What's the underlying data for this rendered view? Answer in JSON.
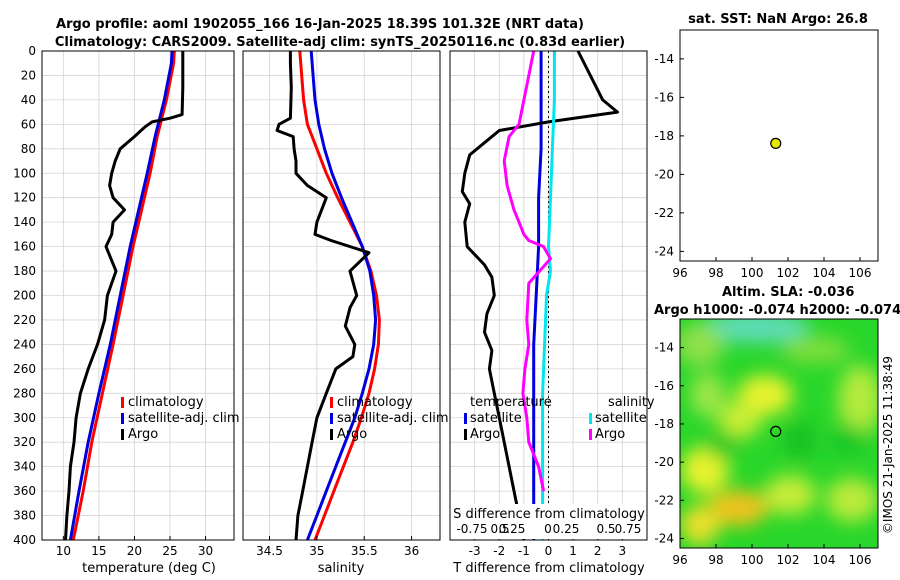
{
  "titles": {
    "line1": "Argo profile: aoml 1902055_166 16-Jan-2025 18.39S 101.32E (NRT data)",
    "line2": "Climatology: CARS2009. Satellite-adj clim: synTS_20250116.nc (0.83d earlier)",
    "sst_title": "sat. SST: NaN Argo: 26.8",
    "sla_title1": "Altim. SLA: -0.036",
    "sla_title2": "Argo h1000: -0.074 h2000: -0.074",
    "credit": "©IMOS 21-Jan-2025 11:38:49"
  },
  "colors": {
    "climatology": "#ff0000",
    "satellite": "#0000dd",
    "argo": "#000000",
    "sal_satellite": "#00e5ee",
    "sal_argo": "#ff00ff"
  },
  "chart_data": [
    {
      "type": "line",
      "name": "temperature",
      "xlabel": "temperature (deg C)",
      "ylabel": "",
      "xlim": [
        7,
        34
      ],
      "ylim": [
        400,
        0
      ],
      "xticks": [
        "10",
        "15",
        "20",
        "25",
        "30"
      ],
      "xtick_values": [
        10,
        15,
        20,
        25,
        30
      ],
      "yticks": [
        "0",
        "20",
        "40",
        "60",
        "80",
        "100",
        "120",
        "140",
        "160",
        "180",
        "200",
        "220",
        "240",
        "260",
        "280",
        "300",
        "320",
        "340",
        "360",
        "380",
        "400"
      ],
      "ytick_values": [
        0,
        20,
        40,
        60,
        80,
        100,
        120,
        140,
        160,
        180,
        200,
        220,
        240,
        260,
        280,
        300,
        320,
        340,
        360,
        380,
        400
      ],
      "legend": [
        "climatology",
        "satellite-adj. clim",
        "Argo"
      ],
      "series": [
        {
          "name": "climatology",
          "color": "#ff0000",
          "depth": [
            0,
            10,
            40,
            70,
            100,
            130,
            160,
            200,
            240,
            280,
            320,
            360,
            400
          ],
          "values": [
            25.6,
            25.5,
            24.5,
            23.2,
            22.2,
            21.0,
            19.8,
            18.4,
            17.0,
            15.5,
            14.0,
            12.8,
            11.4
          ]
        },
        {
          "name": "satellite-adj. clim",
          "color": "#0000dd",
          "depth": [
            0,
            10,
            40,
            70,
            100,
            130,
            160,
            200,
            240,
            280,
            320,
            360,
            400
          ],
          "values": [
            25.3,
            25.2,
            24.2,
            22.9,
            21.8,
            20.6,
            19.4,
            18.0,
            16.6,
            15.0,
            13.5,
            12.2,
            11.0
          ]
        },
        {
          "name": "Argo",
          "color": "#000000",
          "depth": [
            0,
            10,
            30,
            52,
            55,
            58,
            62,
            70,
            80,
            90,
            100,
            110,
            120,
            130,
            140,
            150,
            160,
            180,
            200,
            220,
            240,
            260,
            280,
            300,
            320,
            340,
            360,
            380,
            400
          ],
          "values": [
            26.8,
            26.8,
            26.8,
            26.7,
            25.0,
            22.5,
            21.5,
            20.0,
            18.0,
            17.3,
            16.8,
            16.5,
            17.0,
            18.6,
            17.0,
            16.8,
            16.0,
            17.4,
            16.2,
            15.8,
            14.8,
            13.5,
            12.4,
            11.8,
            11.5,
            11.0,
            10.8,
            10.5,
            10.3
          ]
        }
      ]
    },
    {
      "type": "line",
      "name": "salinity",
      "xlabel": "salinity",
      "ylabel": "",
      "xlim": [
        34.22,
        36.3
      ],
      "ylim": [
        400,
        0
      ],
      "xticks": [
        "34.5",
        "35",
        "35.5",
        "36"
      ],
      "xtick_values": [
        34.5,
        35,
        35.5,
        36
      ],
      "legend": [
        "climatology",
        "satellite-adj. clim",
        "Argo"
      ],
      "series": [
        {
          "name": "climatology",
          "color": "#ff0000",
          "depth": [
            0,
            20,
            40,
            60,
            80,
            100,
            120,
            140,
            160,
            180,
            200,
            220,
            240,
            260,
            280,
            300,
            320,
            340,
            360,
            380,
            400
          ],
          "values": [
            34.82,
            34.84,
            34.86,
            34.9,
            35.0,
            35.1,
            35.22,
            35.35,
            35.48,
            35.57,
            35.63,
            35.66,
            35.65,
            35.61,
            35.55,
            35.47,
            35.38,
            35.28,
            35.18,
            35.08,
            34.98
          ]
        },
        {
          "name": "satellite-adj. clim",
          "color": "#0000dd",
          "depth": [
            0,
            20,
            40,
            60,
            80,
            100,
            120,
            140,
            160,
            180,
            200,
            220,
            240,
            260,
            280,
            300,
            320,
            340,
            360,
            380,
            400
          ],
          "values": [
            34.94,
            34.96,
            34.98,
            35.02,
            35.08,
            35.16,
            35.26,
            35.37,
            35.48,
            35.56,
            35.6,
            35.62,
            35.6,
            35.55,
            35.48,
            35.4,
            35.3,
            35.2,
            35.1,
            35.0,
            34.9
          ]
        },
        {
          "name": "Argo",
          "color": "#000000",
          "depth": [
            0,
            10,
            30,
            55,
            60,
            65,
            70,
            80,
            90,
            100,
            110,
            115,
            120,
            130,
            140,
            150,
            155,
            165,
            180,
            200,
            210,
            225,
            240,
            250,
            260,
            280,
            300,
            320,
            340,
            360,
            380,
            400
          ],
          "values": [
            34.72,
            34.72,
            34.73,
            34.72,
            34.6,
            34.58,
            34.75,
            34.76,
            34.78,
            34.78,
            34.9,
            35.0,
            35.1,
            35.05,
            35.0,
            34.98,
            35.15,
            35.55,
            35.35,
            35.42,
            35.35,
            35.3,
            35.4,
            35.38,
            35.2,
            35.1,
            35.0,
            34.95,
            34.9,
            34.85,
            34.8,
            34.78
          ]
        }
      ]
    },
    {
      "type": "line",
      "name": "difference",
      "xlabel": "T difference from climatology",
      "xlabel_top": "S difference from climatology",
      "xlim": [
        -4,
        4
      ],
      "xticks": [
        "-3",
        "-2",
        "-1",
        "0",
        "1",
        "2",
        "3"
      ],
      "xtick_values": [
        -3,
        -2,
        -1,
        0,
        1,
        2,
        3
      ],
      "xticks_top": [
        "-0.75",
        "0.5",
        "0.25",
        "0",
        "0.25",
        "0.5",
        "0.75"
      ],
      "ylim": [
        400,
        0
      ],
      "legend_left_title": "temperature",
      "legend_right_title": "salinity",
      "legend": [
        "satellite",
        "Argo",
        "satellite",
        "Argo"
      ],
      "series": [
        {
          "name": "T satellite",
          "color": "#0000dd",
          "depth": [
            0,
            40,
            80,
            120,
            160,
            200,
            240,
            280,
            320,
            360,
            400
          ],
          "values": [
            -0.3,
            -0.3,
            -0.3,
            -0.4,
            -0.4,
            -0.5,
            -0.6,
            -0.6,
            -0.6,
            -0.6,
            -0.6
          ]
        },
        {
          "name": "T Argo",
          "color": "#000000",
          "depth": [
            0,
            40,
            50,
            58,
            65,
            75,
            85,
            100,
            115,
            125,
            140,
            160,
            175,
            185,
            200,
            215,
            230,
            245,
            260,
            280,
            300,
            320,
            340,
            360,
            380,
            400
          ],
          "values": [
            1.2,
            2.2,
            2.8,
            0.0,
            -2.0,
            -2.6,
            -3.2,
            -3.4,
            -3.5,
            -3.2,
            -3.4,
            -3.3,
            -2.6,
            -2.3,
            -2.2,
            -2.5,
            -2.6,
            -2.3,
            -2.4,
            -2.2,
            -2.0,
            -1.8,
            -1.6,
            -1.4,
            -1.2,
            -1.0
          ]
        },
        {
          "name": "S satellite",
          "color": "#00e5ee",
          "depth": [
            0,
            40,
            80,
            120,
            160,
            180,
            200,
            240,
            280,
            320,
            360,
            400
          ],
          "values": [
            0.06,
            0.06,
            0.04,
            0.02,
            0.0,
            0.02,
            -0.02,
            -0.04,
            -0.06,
            -0.06,
            -0.06,
            -0.06
          ]
        },
        {
          "name": "S Argo",
          "color": "#ff00ff",
          "depth": [
            0,
            20,
            40,
            60,
            70,
            90,
            110,
            130,
            140,
            150,
            155,
            160,
            170,
            190,
            220,
            240,
            260,
            280,
            300,
            320,
            340,
            360
          ],
          "values": [
            -0.15,
            -0.2,
            -0.25,
            -0.3,
            -0.4,
            -0.45,
            -0.42,
            -0.35,
            -0.3,
            -0.25,
            -0.2,
            -0.05,
            0.02,
            -0.2,
            -0.22,
            -0.2,
            -0.24,
            -0.26,
            -0.22,
            -0.2,
            -0.1,
            -0.05
          ]
        }
      ]
    },
    {
      "type": "scatter",
      "name": "sst_map",
      "title": "sat. SST: NaN Argo: 26.8",
      "xlim": [
        96,
        107
      ],
      "ylim": [
        -24.5,
        -12.5
      ],
      "xticks": [
        "96",
        "98",
        "100",
        "102",
        "104",
        "106"
      ],
      "xtick_values": [
        96,
        98,
        100,
        102,
        104,
        106
      ],
      "yticks": [
        "-14",
        "-16",
        "-18",
        "-20",
        "-22",
        "-24"
      ],
      "ytick_values": [
        -14,
        -16,
        -18,
        -20,
        -22,
        -24
      ],
      "points": [
        {
          "x": 101.32,
          "y": -18.39,
          "color": "#e6e600"
        }
      ]
    },
    {
      "type": "heatmap",
      "name": "sla_map",
      "title": "Altim. SLA: -0.036",
      "xlim": [
        96,
        107
      ],
      "ylim": [
        -24.5,
        -12.5
      ],
      "xticks": [
        "96",
        "98",
        "100",
        "102",
        "104",
        "106"
      ],
      "xtick_values": [
        96,
        98,
        100,
        102,
        104,
        106
      ],
      "yticks": [
        "-14",
        "-16",
        "-18",
        "-20",
        "-22",
        "-24"
      ],
      "ytick_values": [
        -14,
        -16,
        -18,
        -20,
        -22,
        -24
      ],
      "points": [
        {
          "x": 101.32,
          "y": -18.39
        }
      ]
    }
  ]
}
